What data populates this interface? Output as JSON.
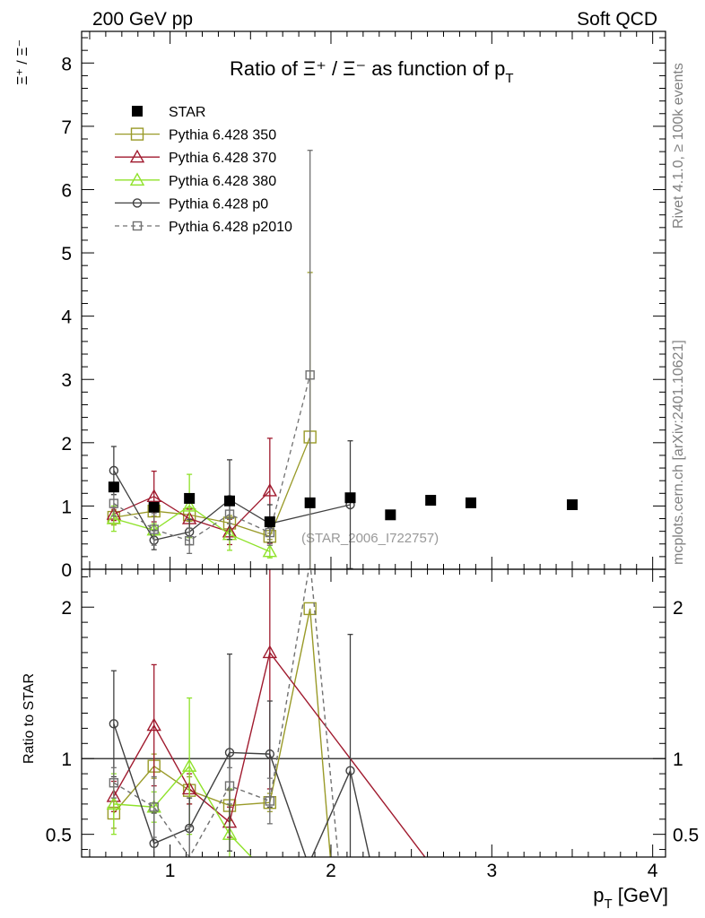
{
  "header": {
    "left": "200 GeV pp",
    "right": "Soft QCD"
  },
  "side_texts": {
    "rivet": "Rivet 4.1.0, ≥ 100k events",
    "mcplots": "mcplots.cern.ch [arXiv:2401.10621]"
  },
  "chart_data": {
    "type": "scatter",
    "title_main": "Ratio of Ξ⁺ / Ξ⁻ as function of p",
    "title_sub": "T",
    "watermark": "(STAR_2006_I722757)",
    "top_ylabel": "Ξ⁺ / Ξ⁻",
    "bottom_ylabel": "Ratio to STAR",
    "xlabel_main": "p",
    "xlabel_sub": "T",
    "xlabel_unit": " [GeV]",
    "xlim": [
      0.45,
      4.08
    ],
    "ylim_top": [
      0,
      8.5
    ],
    "ylim_bottom": [
      0.35,
      2.25
    ],
    "x_ticks": [
      "1",
      "2",
      "3",
      "4"
    ],
    "y_ticks_top": [
      "0",
      "1",
      "2",
      "3",
      "4",
      "5",
      "6",
      "7",
      "8"
    ],
    "y_ticks_bottom": [
      "0.5",
      "1",
      "2"
    ],
    "series": [
      {
        "name": "STAR",
        "color": "#000000",
        "marker": "filled-square",
        "line": "none",
        "dash": "",
        "x": [
          0.65,
          0.9,
          1.12,
          1.37,
          1.62,
          1.87,
          2.12,
          2.37,
          2.62,
          2.87,
          3.5
        ],
        "y": [
          1.3,
          0.98,
          1.12,
          1.08,
          0.75,
          1.05,
          1.13,
          0.86,
          1.09,
          1.05,
          1.02
        ],
        "err": [
          0,
          0,
          0,
          0,
          0,
          0,
          0,
          0,
          0,
          0,
          0
        ],
        "ratio_x": [],
        "ratio_y": [],
        "ratio_err": []
      },
      {
        "name": "Pythia 6.428 350",
        "color": "#999a28",
        "marker": "open-square",
        "line": "solid",
        "dash": "",
        "x": [
          0.65,
          0.9,
          1.12,
          1.37,
          1.62,
          1.87
        ],
        "y": [
          0.82,
          0.92,
          0.86,
          0.73,
          0.52,
          2.09
        ],
        "err": [
          0.12,
          0.08,
          0.1,
          0.12,
          0.05,
          2.6
        ],
        "ratio_x": [
          0.65,
          0.9,
          1.12,
          1.37,
          1.62,
          1.87,
          2.0
        ],
        "ratio_y": [
          0.64,
          0.95,
          0.79,
          0.69,
          0.71,
          1.99,
          0.3
        ],
        "ratio_err": [
          0.1,
          0.08,
          0.09,
          0.1,
          0.06,
          0,
          0
        ]
      },
      {
        "name": "Pythia 6.428 370",
        "color": "#a01a2e",
        "marker": "open-triangle",
        "line": "solid",
        "dash": "",
        "x": [
          0.65,
          0.9,
          1.12,
          1.37,
          1.62
        ],
        "y": [
          0.87,
          1.15,
          0.8,
          0.59,
          1.24
        ],
        "err": [
          0.1,
          0.4,
          0.15,
          0.2,
          0.83
        ],
        "ratio_x": [
          0.65,
          0.9,
          1.12,
          1.37,
          1.62,
          2.62
        ],
        "ratio_y": [
          0.75,
          1.22,
          0.8,
          0.58,
          1.7,
          0.3
        ],
        "ratio_err": [
          0.1,
          0.4,
          0.1,
          0.1,
          0.9,
          0
        ]
      },
      {
        "name": "Pythia 6.428 380",
        "color": "#8fe22a",
        "marker": "open-triangle",
        "line": "solid",
        "dash": "",
        "x": [
          0.65,
          0.9,
          1.12,
          1.37,
          1.62
        ],
        "y": [
          0.8,
          0.62,
          1.0,
          0.55,
          0.28
        ],
        "err": [
          0.2,
          0.1,
          0.5,
          0.25,
          0.1
        ],
        "ratio_x": [
          0.65,
          0.9,
          1.12,
          1.37,
          1.55
        ],
        "ratio_y": [
          0.7,
          0.68,
          0.95,
          0.5,
          0.3
        ],
        "ratio_err": [
          0.2,
          0.1,
          0.45,
          0.3,
          0
        ]
      },
      {
        "name": "Pythia 6.428 p0",
        "color": "#404040",
        "marker": "open-circle",
        "line": "solid",
        "dash": "",
        "x": [
          0.65,
          0.9,
          1.12,
          1.37,
          1.62,
          2.12
        ],
        "y": [
          1.56,
          0.46,
          0.59,
          1.1,
          0.72,
          1.02
        ],
        "err": [
          0.38,
          0.15,
          0.2,
          0.63,
          0.3,
          1.01
        ],
        "ratio_x": [
          0.65,
          0.9,
          1.12,
          1.37,
          1.62,
          1.86,
          2.12,
          2.25
        ],
        "ratio_y": [
          1.23,
          0.44,
          0.54,
          1.04,
          1.03,
          0.3,
          0.92,
          0.3
        ],
        "ratio_err": [
          0.35,
          0.2,
          0.2,
          0.65,
          0.35,
          0,
          0.9,
          0
        ]
      },
      {
        "name": "Pythia 6.428 p2010",
        "color": "#707070",
        "marker": "open-square-small",
        "line": "dashed",
        "dash": "5,4",
        "x": [
          0.65,
          0.9,
          1.12,
          1.37,
          1.62,
          1.87
        ],
        "y": [
          1.04,
          0.63,
          0.45,
          0.87,
          0.58,
          3.07
        ],
        "err": [
          0.2,
          0.25,
          0.2,
          0.15,
          0.2,
          3.55
        ],
        "ratio_x": [
          0.65,
          0.9,
          1.12,
          1.37,
          1.62,
          1.87,
          2.05
        ],
        "ratio_y": [
          0.84,
          0.68,
          0.35,
          0.82,
          0.72,
          2.3,
          0.3
        ],
        "ratio_err": [
          0.1,
          0.2,
          0.2,
          0.12,
          0.15,
          0,
          0
        ]
      }
    ]
  }
}
